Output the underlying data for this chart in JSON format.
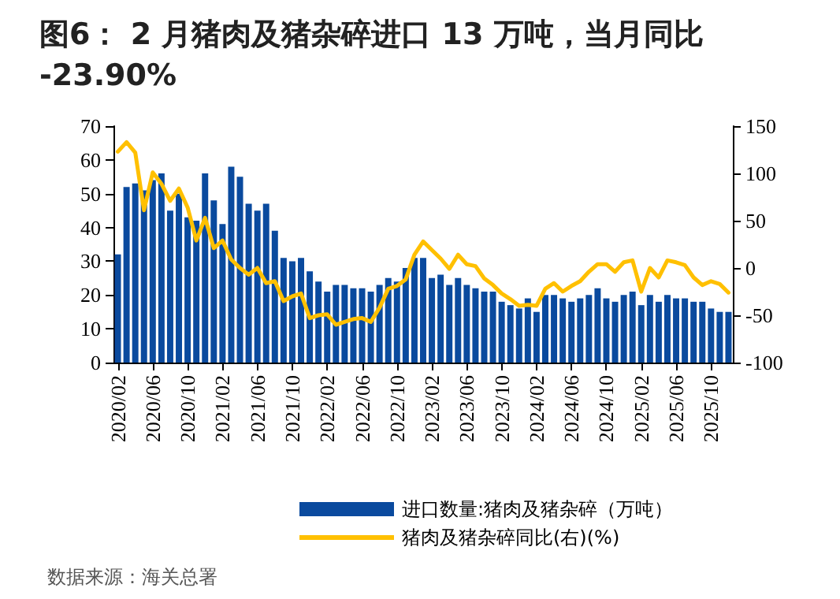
{
  "chart_data": {
    "type": "bar",
    "title": "图6： 2 月猪肉及猪杂碎进口 13 万吨，当月同比-23.90%",
    "categories": [
      "2020/02",
      null,
      null,
      null,
      "2020/06",
      null,
      null,
      null,
      "2020/10",
      null,
      null,
      null,
      "2021/02",
      null,
      null,
      null,
      "2021/06",
      null,
      null,
      null,
      "2021/10",
      null,
      null,
      null,
      "2022/02",
      null,
      null,
      null,
      "2022/06",
      null,
      null,
      null,
      "2022/10",
      null,
      null,
      null,
      "2023/02",
      null,
      null,
      null,
      "2023/06",
      null,
      null,
      null,
      "2023/10",
      null,
      null,
      null,
      "2024/02",
      null,
      null,
      null,
      "2024/06",
      null,
      null,
      null,
      "2024/10",
      null,
      null,
      null,
      "2025/02",
      null,
      null,
      null,
      "2025/06",
      null,
      null,
      null,
      "2025/10",
      null,
      null
    ],
    "series": [
      {
        "name": "进口数量:猪肉及猪杂碎（万吨）",
        "color": "#0a4a9e",
        "values": [
          32,
          52,
          53,
          51,
          54,
          56,
          45,
          50,
          43,
          42,
          56,
          48,
          41,
          58,
          55,
          47,
          45,
          47,
          39,
          31,
          30,
          31,
          27,
          24,
          21,
          23,
          23,
          22,
          22,
          21,
          23,
          25,
          24,
          28,
          31,
          31,
          25,
          26,
          23,
          25,
          23,
          22,
          21,
          21,
          18,
          17,
          16,
          19,
          15,
          20,
          20,
          19,
          18,
          19,
          20,
          22,
          19,
          18,
          20,
          21,
          17,
          20,
          18,
          20,
          19,
          19,
          18,
          18,
          16,
          15,
          15
        ]
      },
      {
        "name": "猪肉及猪杂碎同比(右)(%)",
        "type": "line",
        "axis": "y2",
        "color": "#ffc000",
        "values": [
          123,
          133,
          122,
          61,
          101,
          89,
          71,
          84,
          64,
          29,
          53,
          21,
          29,
          9,
          0,
          -7,
          0,
          -16,
          -14,
          -35,
          -30,
          -27,
          -53,
          -50,
          -49,
          -60,
          -57,
          -54,
          -53,
          -57,
          -42,
          -22,
          -19,
          -12,
          14,
          28,
          19,
          10,
          -1,
          14,
          4,
          2,
          -11,
          -18,
          -27,
          -33,
          -40,
          -39,
          -40,
          -22,
          -16,
          -25,
          -19,
          -14,
          -4,
          4,
          4,
          -4,
          6,
          8,
          -25,
          0,
          -10,
          8,
          6,
          3,
          -10,
          -18,
          -14,
          -17,
          -26
        ]
      }
    ],
    "ylim": [
      0,
      70
    ],
    "yticks": [
      0,
      10,
      20,
      30,
      40,
      50,
      60,
      70
    ],
    "y2lim": [
      -100,
      150
    ],
    "y2ticks": [
      -100,
      -50,
      0,
      50,
      100,
      150
    ],
    "grid": false,
    "legend": "bottom",
    "marker": "none",
    "line_style": "solid",
    "annotations": [
      "数据来源：海关总署"
    ]
  }
}
